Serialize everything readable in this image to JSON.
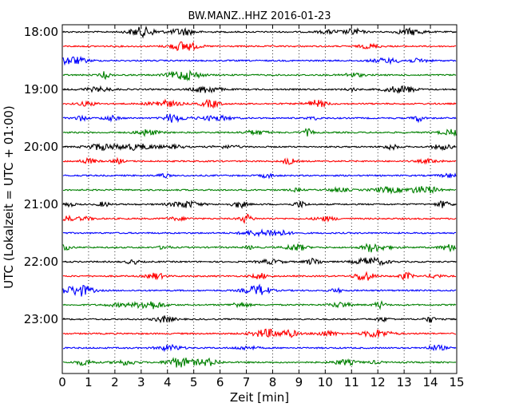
{
  "chart_data": {
    "type": "line",
    "title": "BW.MANZ..HHZ 2016-01-23",
    "xlabel": "Zeit  [min]",
    "ylabel": "UTC (Lokalzeit = UTC + 01:00)",
    "xlim": [
      0,
      15
    ],
    "x_ticks": [
      "0",
      "1",
      "2",
      "3",
      "4",
      "5",
      "6",
      "7",
      "8",
      "9",
      "10",
      "11",
      "12",
      "13",
      "14",
      "15"
    ],
    "grid": "vertical dotted at each minute",
    "trace_interval_minutes": 15,
    "hour_labels": [
      {
        "label": "18:00",
        "trace_index": 0
      },
      {
        "label": "19:00",
        "trace_index": 4
      },
      {
        "label": "20:00",
        "trace_index": 8
      },
      {
        "label": "21:00",
        "trace_index": 12
      },
      {
        "label": "22:00",
        "trace_index": 16
      },
      {
        "label": "23:00",
        "trace_index": 20
      }
    ],
    "trace_colors": [
      "#000000",
      "#ff0000",
      "#0000ff",
      "#008000"
    ],
    "series": [
      {
        "start": "18:00",
        "color": "#000000"
      },
      {
        "start": "18:15",
        "color": "#ff0000"
      },
      {
        "start": "18:30",
        "color": "#0000ff"
      },
      {
        "start": "18:45",
        "color": "#008000"
      },
      {
        "start": "19:00",
        "color": "#000000"
      },
      {
        "start": "19:15",
        "color": "#ff0000"
      },
      {
        "start": "19:30",
        "color": "#0000ff"
      },
      {
        "start": "19:45",
        "color": "#008000"
      },
      {
        "start": "20:00",
        "color": "#000000"
      },
      {
        "start": "20:15",
        "color": "#ff0000"
      },
      {
        "start": "20:30",
        "color": "#0000ff"
      },
      {
        "start": "20:45",
        "color": "#008000"
      },
      {
        "start": "21:00",
        "color": "#000000"
      },
      {
        "start": "21:15",
        "color": "#ff0000"
      },
      {
        "start": "21:30",
        "color": "#0000ff"
      },
      {
        "start": "21:45",
        "color": "#008000"
      },
      {
        "start": "22:00",
        "color": "#000000"
      },
      {
        "start": "22:15",
        "color": "#ff0000"
      },
      {
        "start": "22:30",
        "color": "#0000ff"
      },
      {
        "start": "22:45",
        "color": "#008000"
      },
      {
        "start": "23:00",
        "color": "#000000"
      },
      {
        "start": "23:15",
        "color": "#ff0000"
      },
      {
        "start": "23:30",
        "color": "#0000ff"
      },
      {
        "start": "23:45",
        "color": "#008000"
      }
    ]
  }
}
